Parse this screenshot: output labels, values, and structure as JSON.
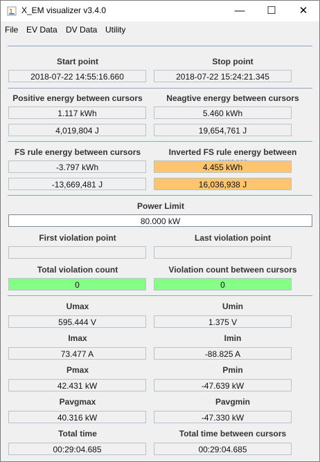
{
  "window": {
    "title": "X_EM visualizer v3.4.0",
    "minimize": "—",
    "maximize": "☐",
    "close": "✕"
  },
  "colors": {
    "highlight": "#ffc56e",
    "ok": "#86ff86",
    "separator": "#8ea3c0"
  },
  "menu": [
    "File",
    "EV Data",
    "DV Data",
    "Utility"
  ],
  "cursors": {
    "start_label": "Start point",
    "start_value": "2018-07-22 14:55:16.660",
    "stop_label": "Stop point",
    "stop_value": "2018-07-22 15:24:21.345"
  },
  "energy": {
    "pos_label": "Positive energy between cursors",
    "pos_kwh": "1.117 kWh",
    "pos_j": "4,019,804 J",
    "neg_label": "Neagtive energy between cursors",
    "neg_kwh": "5.460 kWh",
    "neg_j": "19,654,761 J"
  },
  "fs": {
    "fs_label": "FS rule energy between cursors",
    "fs_kwh": "-3.797 kWh",
    "fs_j": "-13,669,481 J",
    "inv_label": "Inverted FS rule energy between cursors",
    "inv_kwh": "4.455 kWh",
    "inv_j": "16,036,938 J"
  },
  "power": {
    "limit_label": "Power Limit",
    "limit_value": "80.000 kW",
    "first_label": "First violation point",
    "first_value": "",
    "last_label": "Last violation point",
    "last_value": "",
    "total_label": "Total violation count",
    "total_value": "0",
    "between_label": "Violation count between cursors",
    "between_value": "0"
  },
  "stats": {
    "umax_label": "Umax",
    "umax": "595.444 V",
    "umin_label": "Umin",
    "umin": "1.375 V",
    "imax_label": "Imax",
    "imax": "73.477 A",
    "imin_label": "Imin",
    "imin": "-88.825 A",
    "pmax_label": "Pmax",
    "pmax": "42.431 kW",
    "pmin_label": "Pmin",
    "pmin": "-47.639 kW",
    "pavgmax_label": "Pavgmax",
    "pavgmax": "40.316 kW",
    "pavgmin_label": "Pavgmin",
    "pavgmin": "-47.330 kW",
    "ttime_label": "Total time",
    "ttime": "00:29:04.685",
    "tbetween_label": "Total time between cursors",
    "tbetween": "00:29:04.685"
  }
}
